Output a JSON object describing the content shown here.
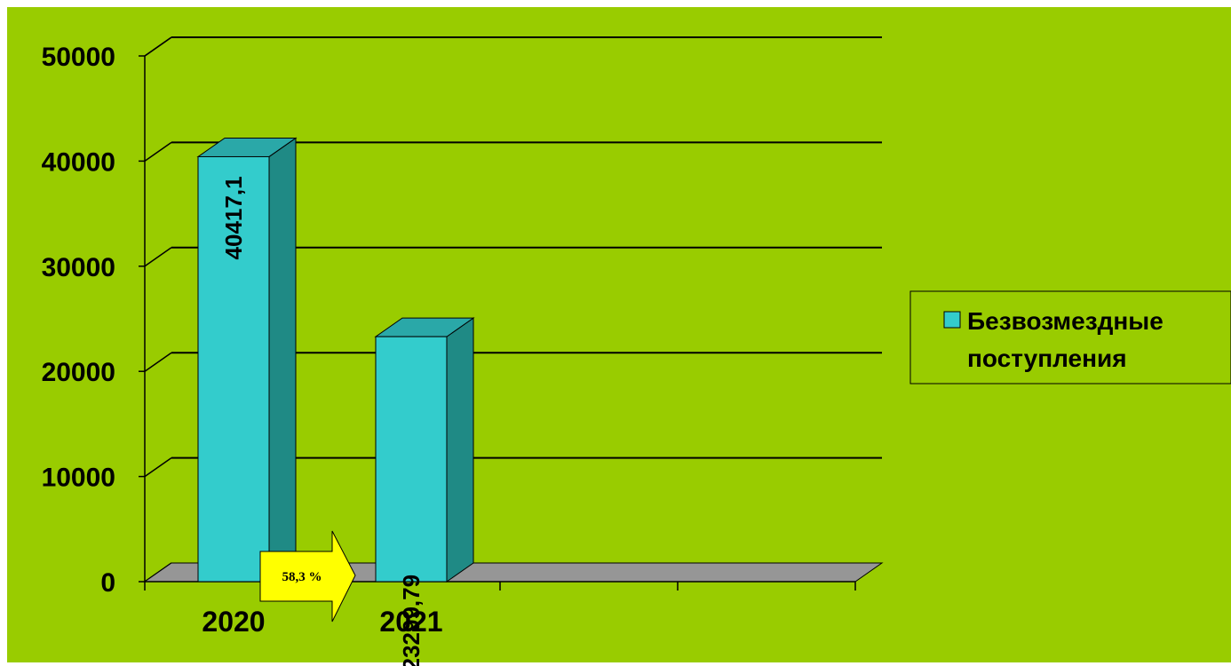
{
  "chart_data": {
    "type": "bar",
    "categories": [
      "2020",
      "2021",
      "",
      ""
    ],
    "series": [
      {
        "name": "Безвозмездные поступления",
        "values": [
          40417.1,
          23299.79,
          null,
          null
        ],
        "value_labels": [
          "40417,1",
          "23299,79",
          "",
          ""
        ]
      }
    ],
    "y_ticks": [
      "0",
      "10000",
      "20000",
      "30000",
      "40000",
      "50000"
    ],
    "ylim": [
      0,
      50000
    ],
    "grid": true,
    "legend_position": "right",
    "annotation": "58,3 %",
    "colors": {
      "plot_background": "#99cc00",
      "bar_front": "#33cccc",
      "bar_side": "#1f8a85",
      "bar_top": "#2aa8a8",
      "floor": "#969696",
      "callout": "#ffff00"
    }
  }
}
